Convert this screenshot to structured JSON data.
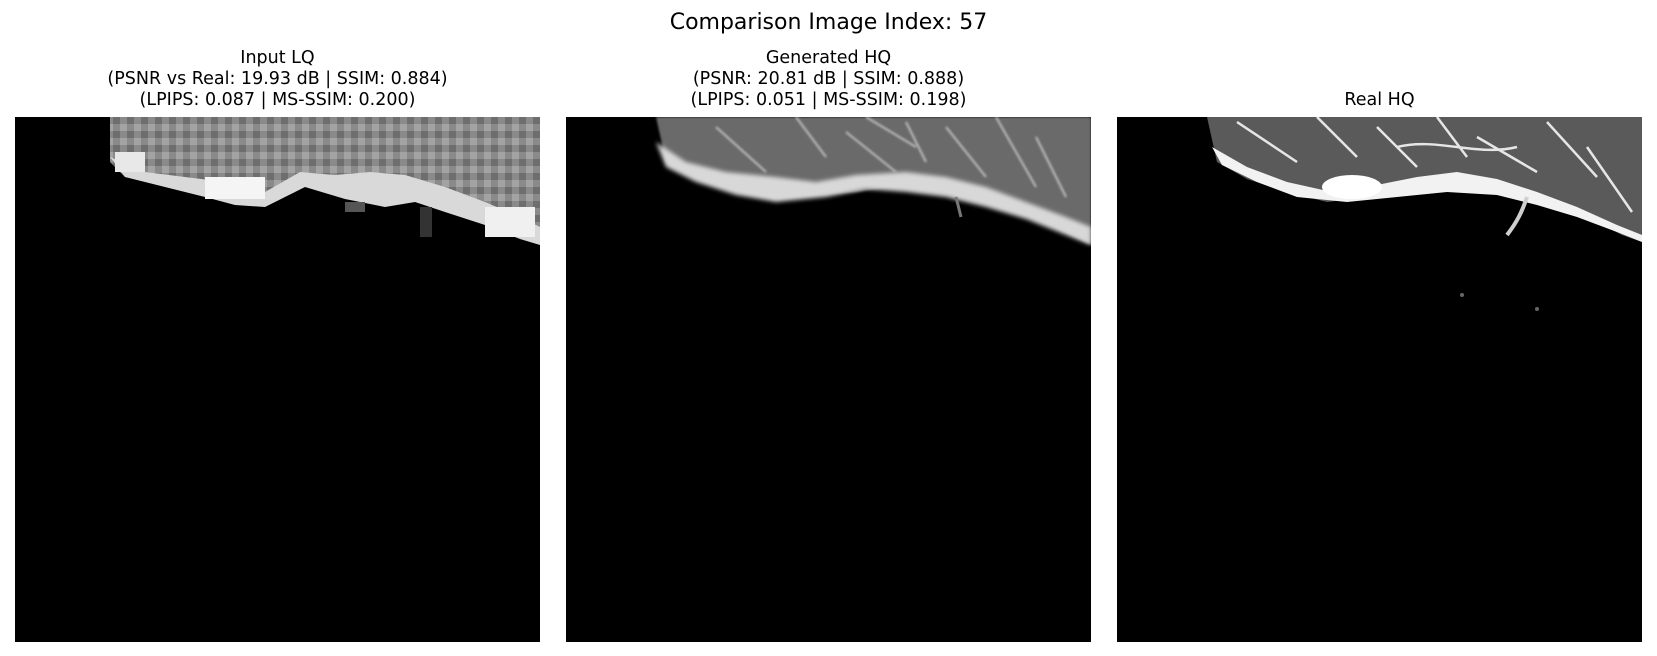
{
  "figure": {
    "title": "Comparison Image Index: 57"
  },
  "panels": [
    {
      "title": "Input LQ",
      "line2": "(PSNR vs Real: 19.93 dB | SSIM: 0.884)",
      "line3": "(LPIPS: 0.087 | MS-SSIM: 0.200)"
    },
    {
      "title": "Generated HQ",
      "line2": "(PSNR: 20.81 dB | SSIM: 0.888)",
      "line3": "(LPIPS: 0.051 | MS-SSIM: 0.198)"
    },
    {
      "title": "Real HQ",
      "line2": "",
      "line3": ""
    }
  ]
}
